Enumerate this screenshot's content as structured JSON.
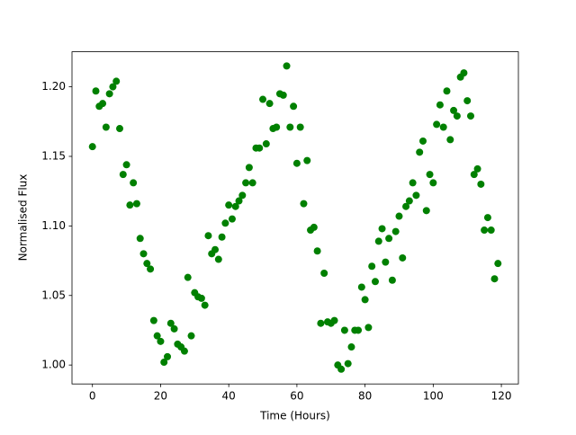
{
  "chart_data": {
    "type": "scatter",
    "xlabel": "Time (Hours)",
    "ylabel": "Normalised Flux",
    "x": [
      0,
      1,
      2,
      3,
      4,
      5,
      6,
      7,
      8,
      9,
      10,
      11,
      12,
      13,
      14,
      15,
      16,
      17,
      18,
      19,
      20,
      21,
      22,
      23,
      24,
      25,
      26,
      27,
      28,
      29,
      30,
      31,
      32,
      33,
      34,
      35,
      36,
      37,
      38,
      39,
      40,
      41,
      42,
      43,
      44,
      45,
      46,
      47,
      48,
      49,
      50,
      51,
      52,
      53,
      54,
      55,
      56,
      57,
      58,
      59,
      60,
      61,
      62,
      63,
      64,
      65,
      66,
      67,
      68,
      69,
      70,
      71,
      72,
      73,
      74,
      75,
      76,
      77,
      78,
      79,
      80,
      81,
      82,
      83,
      84,
      85,
      86,
      87,
      88,
      89,
      90,
      91,
      92,
      93,
      94,
      95,
      96,
      97,
      98,
      99,
      100,
      101,
      102,
      103,
      104,
      105,
      106,
      107,
      108,
      109,
      110,
      111,
      112,
      113,
      114,
      115,
      116,
      117,
      118,
      119
    ],
    "values": [
      1.157,
      1.197,
      1.186,
      1.188,
      1.171,
      1.195,
      1.2,
      1.204,
      1.17,
      1.137,
      1.144,
      1.115,
      1.131,
      1.116,
      1.091,
      1.08,
      1.073,
      1.069,
      1.032,
      1.021,
      1.017,
      1.002,
      1.006,
      1.03,
      1.026,
      1.015,
      1.013,
      1.01,
      1.063,
      1.021,
      1.052,
      1.049,
      1.048,
      1.043,
      1.093,
      1.08,
      1.083,
      1.076,
      1.092,
      1.102,
      1.115,
      1.105,
      1.114,
      1.118,
      1.122,
      1.131,
      1.142,
      1.131,
      1.156,
      1.156,
      1.191,
      1.159,
      1.188,
      1.17,
      1.171,
      1.195,
      1.194,
      1.215,
      1.171,
      1.186,
      1.145,
      1.171,
      1.116,
      1.147,
      1.097,
      1.099,
      1.082,
      1.03,
      1.066,
      1.031,
      1.03,
      1.032,
      1.0,
      0.997,
      1.025,
      1.001,
      1.013,
      1.025,
      1.025,
      1.056,
      1.047,
      1.027,
      1.071,
      1.06,
      1.089,
      1.098,
      1.074,
      1.091,
      1.061,
      1.096,
      1.107,
      1.077,
      1.114,
      1.118,
      1.131,
      1.122,
      1.153,
      1.161,
      1.111,
      1.137,
      1.131,
      1.173,
      1.187,
      1.171,
      1.197,
      1.162,
      1.183,
      1.179,
      1.207,
      1.21,
      1.19,
      1.179,
      1.137,
      1.141,
      1.13,
      1.097,
      1.106,
      1.097,
      1.062,
      1.073
    ],
    "color": "#008000",
    "xlim": [
      -6,
      125
    ],
    "ylim": [
      0.9864,
      1.2252
    ],
    "xticks": [
      0,
      20,
      40,
      60,
      80,
      100,
      120
    ],
    "yticks": [
      {
        "value": 1.0,
        "label": "1.00"
      },
      {
        "value": 1.05,
        "label": "1.05"
      },
      {
        "value": 1.1,
        "label": "1.10"
      },
      {
        "value": 1.15,
        "label": "1.15"
      },
      {
        "value": 1.2,
        "label": "1.20"
      }
    ],
    "grid": false
  }
}
